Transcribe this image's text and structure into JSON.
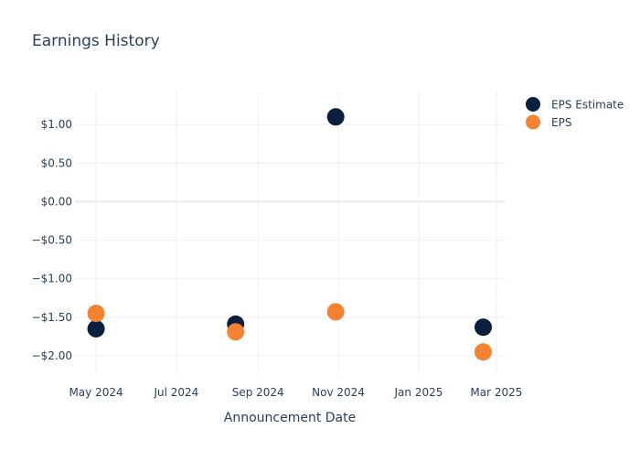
{
  "chart_data": {
    "type": "scatter",
    "title": "Earnings History",
    "xlabel": "Announcement Date",
    "ylabel": "",
    "x_ticks": [
      {
        "date": "2024-05-01",
        "label": "May 2024"
      },
      {
        "date": "2024-07-01",
        "label": "Jul 2024"
      },
      {
        "date": "2024-09-01",
        "label": "Sep 2024"
      },
      {
        "date": "2024-11-01",
        "label": "Nov 2024"
      },
      {
        "date": "2025-01-01",
        "label": "Jan 2025"
      },
      {
        "date": "2025-03-01",
        "label": "Mar 2025"
      }
    ],
    "y_ticks": [
      {
        "value": 1.0,
        "label": "$1.00"
      },
      {
        "value": 0.5,
        "label": "$0.50"
      },
      {
        "value": 0.0,
        "label": "$0.00"
      },
      {
        "value": -0.5,
        "label": "−$0.50"
      },
      {
        "value": -1.0,
        "label": "−$1.00"
      },
      {
        "value": -1.5,
        "label": "−$1.50"
      },
      {
        "value": -2.0,
        "label": "−$2.00"
      }
    ],
    "xlim": [
      "2024-04-15",
      "2025-03-08"
    ],
    "ylim": [
      -2.25,
      1.43
    ],
    "grid": true,
    "legend_position": "top-right",
    "series": [
      {
        "name": "EPS Estimate",
        "color": "#0b1f3f",
        "points": [
          {
            "x": "2024-05-01",
            "y": -1.65
          },
          {
            "x": "2024-08-15",
            "y": -1.59
          },
          {
            "x": "2024-10-30",
            "y": 1.1
          },
          {
            "x": "2025-02-19",
            "y": -1.63
          }
        ]
      },
      {
        "name": "EPS",
        "color": "#f58231",
        "points": [
          {
            "x": "2024-05-01",
            "y": -1.45
          },
          {
            "x": "2024-08-15",
            "y": -1.69
          },
          {
            "x": "2024-10-30",
            "y": -1.43
          },
          {
            "x": "2025-02-19",
            "y": -1.95
          }
        ]
      }
    ]
  }
}
